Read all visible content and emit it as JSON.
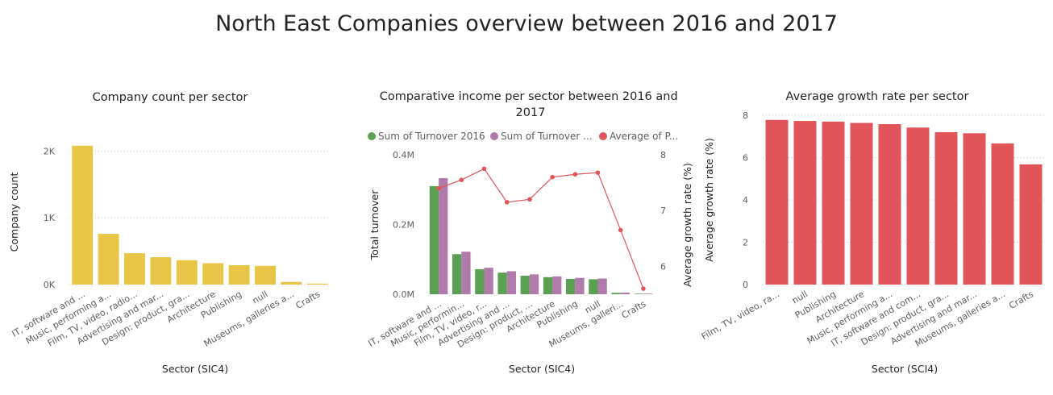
{
  "page": {
    "title": "North East Companies overview between 2016 and 2017"
  },
  "colors": {
    "yellow": "#E8C547",
    "green": "#5BA052",
    "purple": "#B07AAA",
    "red": "#E1555A",
    "grid": "#C8C6C4",
    "text": "#605E5C"
  },
  "chart_data": [
    {
      "type": "bar",
      "title": "Company count per sector",
      "xlabel": "Sector (SIC4)",
      "ylabel": "Company count",
      "categories": [
        "IT, software and ...",
        "Music, performing a...",
        "Film, TV, video, radio...",
        "Advertising and mar...",
        "Design: product, gra...",
        "Architecture",
        "Publishing",
        "null",
        "Museums, galleries a...",
        "Crafts"
      ],
      "values": [
        2080,
        760,
        470,
        410,
        365,
        320,
        290,
        280,
        40,
        15
      ],
      "yticks": [
        0,
        1000,
        2000
      ],
      "ytick_labels": [
        "0K",
        "1K",
        "2K"
      ],
      "ylim": [
        0,
        2150
      ],
      "grid": true,
      "color": "#E8C547"
    },
    {
      "type": "bar",
      "title": "Comparative income per sector between 2016 and 2017",
      "xlabel": "Sector (SIC4)",
      "ylabel": "Total turnover",
      "y2label": "Average growth rate (%)",
      "legend_position": "top",
      "categories": [
        "IT, software and ...",
        "Music, performin...",
        "Film, TV, video, r...",
        "Advertising and ...",
        "Design: product, ...",
        "Architecture",
        "Publishing",
        "null",
        "Museums, galleri...",
        "Crafts"
      ],
      "series": [
        {
          "name": "Sum of Turnover 2016",
          "kind": "bar",
          "axis": "left",
          "color": "#5BA052",
          "values": [
            310000,
            115000,
            72000,
            62000,
            53000,
            49000,
            44000,
            43000,
            4000,
            1500
          ]
        },
        {
          "name": "Sum of Turnover ...",
          "kind": "bar",
          "axis": "left",
          "color": "#B07AAA",
          "values": [
            333000,
            122000,
            76000,
            66000,
            57000,
            51000,
            47000,
            45000,
            4500,
            1800
          ]
        },
        {
          "name": "Average of P...",
          "kind": "line",
          "axis": "right",
          "color": "#E1555A",
          "values": [
            7.4,
            7.55,
            7.75,
            7.15,
            7.2,
            7.6,
            7.65,
            7.68,
            6.65,
            5.6
          ]
        }
      ],
      "yticks": [
        0,
        200000,
        400000
      ],
      "ytick_labels": [
        "0.0M",
        "0.2M",
        "0.4M"
      ],
      "ylim": [
        0,
        400000
      ],
      "y2ticks": [
        6,
        7,
        8
      ],
      "y2tick_labels": [
        "6",
        "7",
        "8"
      ],
      "y2lim": [
        5.5,
        8
      ]
    },
    {
      "type": "bar",
      "title": "Average growth rate per sector",
      "xlabel": "Sector (SCI4)",
      "ylabel": "Average growth rate (%)",
      "categories": [
        "Film, TV, video, ra...",
        "null",
        "Publishing",
        "Architecture",
        "Music, performing a...",
        "IT, software and com...",
        "Design: product, gra...",
        "Advertising and mar...",
        "Museums, galleries a...",
        "Crafts"
      ],
      "values": [
        7.78,
        7.73,
        7.7,
        7.64,
        7.58,
        7.42,
        7.2,
        7.15,
        6.67,
        5.68
      ],
      "yticks": [
        0,
        2,
        4,
        6,
        8
      ],
      "ytick_labels": [
        "0",
        "2",
        "4",
        "6",
        "8"
      ],
      "ylim": [
        0,
        8
      ],
      "grid": true,
      "color": "#E1555A"
    }
  ]
}
